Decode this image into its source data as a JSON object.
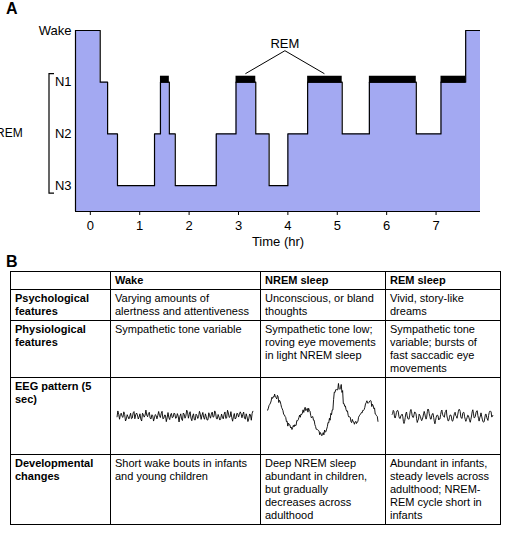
{
  "chart_data": {
    "type": "area",
    "panel_label": "A",
    "xlabel": "Time (hr)",
    "x": [
      -0.3,
      0.2,
      0.35,
      0.55,
      1.3,
      1.42,
      1.6,
      1.72,
      2.55,
      2.95,
      3.35,
      3.62,
      4.0,
      4.4,
      5.1,
      5.65,
      6.6,
      7.1,
      7.6,
      7.9
    ],
    "values": [
      3,
      2,
      1,
      0,
      1,
      2,
      1,
      0,
      1,
      2,
      1,
      0,
      1,
      2,
      1,
      2,
      1,
      2,
      3,
      3
    ],
    "color": "#a3a9f2",
    "xlim": [
      -0.3,
      7.9
    ],
    "xticks": [
      0,
      1,
      2,
      3,
      4,
      5,
      6,
      7
    ],
    "ylim": [
      -0.5,
      3
    ],
    "yticks": [
      {
        "value": 3,
        "label": "Wake"
      },
      {
        "value": 2,
        "label": "N1"
      },
      {
        "value": 1,
        "label": "N2"
      },
      {
        "value": 0,
        "label": "N3"
      }
    ],
    "group_label": "NREM",
    "rem": {
      "label": "REM",
      "periods": [
        {
          "start": 1.42,
          "end": 1.6
        },
        {
          "start": 2.95,
          "end": 3.35
        },
        {
          "start": 4.4,
          "end": 5.1
        },
        {
          "start": 5.65,
          "end": 6.6
        },
        {
          "start": 7.1,
          "end": 7.6
        }
      ]
    }
  },
  "table": {
    "panel_label": "B",
    "columns": [
      "Wake",
      "NREM sleep",
      "REM sleep"
    ],
    "rows": [
      {
        "header": "Psychological features",
        "cells": [
          "Varying amounts of alertness and attentiveness",
          "Unconscious, or bland thoughts",
          "Vivid, story-like dreams"
        ]
      },
      {
        "header": "Physiological features",
        "cells": [
          "Sympathetic tone variable",
          "Sympathetic tone low; roving eye movements in light NREM sleep",
          "Sympathetic tone variable; bursts of fast saccadic eye movements"
        ]
      },
      {
        "header": "EEG pattern (5 sec)"
      },
      {
        "header": "Developmental changes",
        "cells": [
          "Short wake bouts in infants and young children",
          "Deep NREM sleep abundant in children, but gradually decreases across adulthood",
          "Abundant in infants, steady levels across adulthood; NREM-REM cycle short in infants"
        ]
      }
    ]
  }
}
